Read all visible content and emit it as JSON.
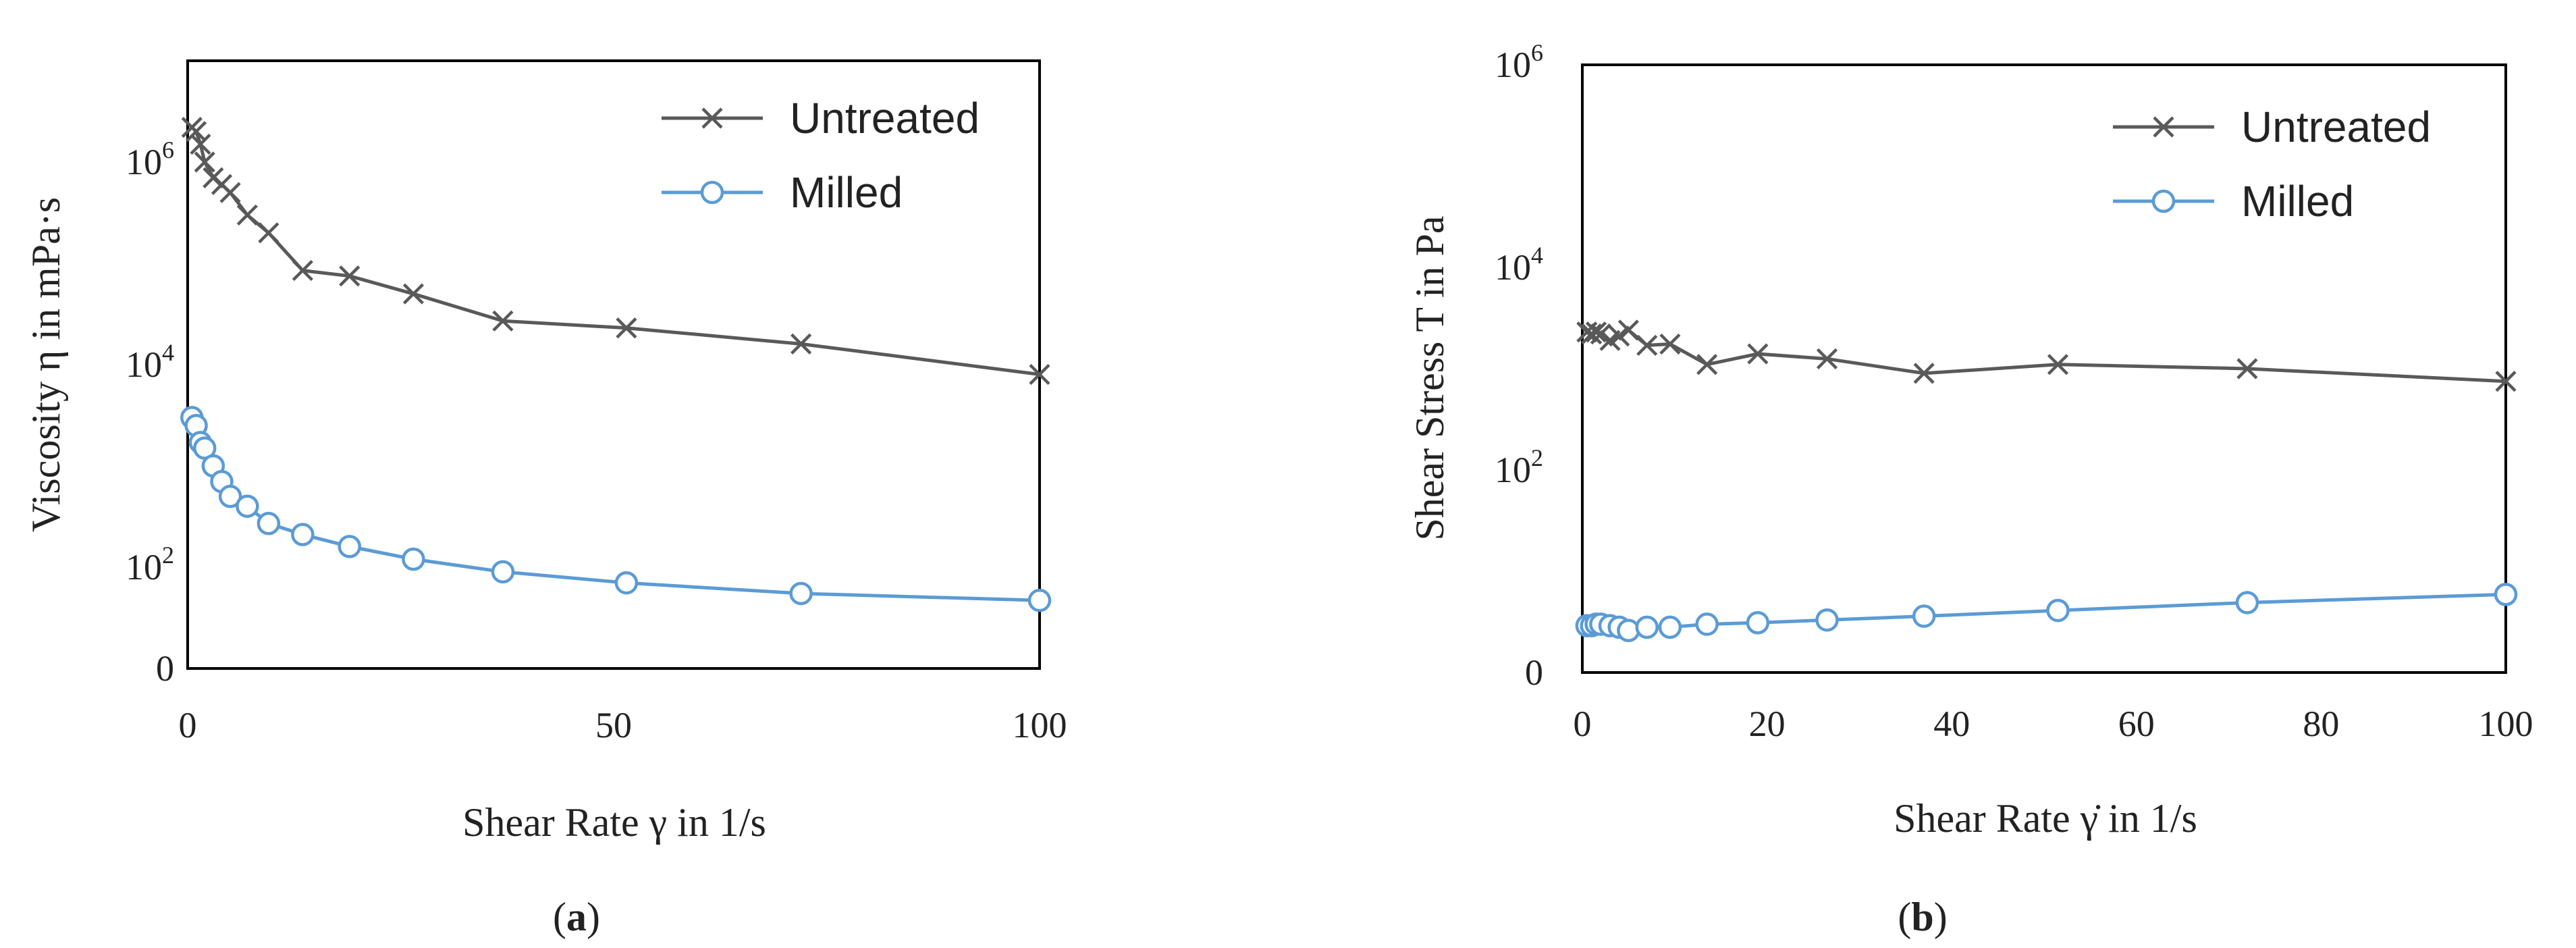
{
  "figure": {
    "panel_labels": [
      "(a)",
      "(b)"
    ],
    "label_letters": [
      "a",
      "b"
    ]
  },
  "chart_data": [
    {
      "type": "line",
      "panel": "a",
      "xlabel": "Shear Rate γ in 1/s",
      "ylabel": "Viscosity η in mPa·s",
      "y_scale": "log",
      "xlim": [
        0,
        100
      ],
      "ylim": [
        10,
        10000000
      ],
      "xticks": [
        0,
        50,
        100
      ],
      "xtick_labels": [
        "0",
        "50",
        "100"
      ],
      "yticks": [
        10,
        100,
        10000,
        1000000
      ],
      "ytick_labels": [
        {
          "base": "0",
          "exp": ""
        },
        {
          "base": "10",
          "exp": "2"
        },
        {
          "base": "10",
          "exp": "4"
        },
        {
          "base": "10",
          "exp": "6"
        }
      ],
      "grid": false,
      "legend": "top-right",
      "series": [
        {
          "name": "Untreated",
          "color": "#595959",
          "marker": "x",
          "x": [
            0.5,
            1,
            1.5,
            2,
            3,
            4,
            5,
            7,
            9.5,
            13.5,
            19,
            26.5,
            37,
            51.5,
            72,
            100
          ],
          "y": [
            2200000,
            2000000,
            1500000,
            1000000,
            700000,
            600000,
            500000,
            300000,
            200000,
            85000,
            75000,
            50000,
            27000,
            23000,
            16000,
            8000
          ]
        },
        {
          "name": "Milled",
          "color": "#5b9bd5",
          "marker": "o",
          "x": [
            0.5,
            1,
            1.5,
            2,
            3,
            4,
            5,
            7,
            9.5,
            13.5,
            19,
            26.5,
            37,
            51.5,
            72,
            100
          ],
          "y": [
            3000,
            2500,
            1700,
            1500,
            1000,
            700,
            500,
            400,
            270,
            210,
            160,
            120,
            90,
            70,
            55,
            47
          ]
        }
      ]
    },
    {
      "type": "line",
      "panel": "b",
      "xlabel": "Shear Rate γ̇ in 1/s",
      "ylabel": "Shear Stress T in Pa",
      "y_scale": "log",
      "xlim": [
        0,
        100
      ],
      "ylim": [
        1,
        1000000
      ],
      "xticks": [
        0,
        20,
        40,
        60,
        80,
        100
      ],
      "xtick_labels": [
        "0",
        "20",
        "40",
        "60",
        "80",
        "100"
      ],
      "yticks": [
        1,
        100,
        10000,
        1000000
      ],
      "ytick_labels": [
        {
          "base": "0",
          "exp": ""
        },
        {
          "base": "10",
          "exp": "2"
        },
        {
          "base": "10",
          "exp": "4"
        },
        {
          "base": "10",
          "exp": "6"
        }
      ],
      "grid": false,
      "legend": "top-right",
      "series": [
        {
          "name": "Untreated",
          "color": "#595959",
          "marker": "x",
          "x": [
            0.5,
            1,
            1.5,
            2,
            3,
            4,
            5,
            7,
            9.5,
            13.5,
            19,
            26.5,
            37,
            51.5,
            72,
            100
          ],
          "y": [
            2300,
            2200,
            2300,
            2200,
            1900,
            2100,
            2400,
            1700,
            1750,
            1100,
            1400,
            1250,
            900,
            1100,
            1000,
            750
          ]
        },
        {
          "name": "Milled",
          "color": "#5b9bd5",
          "marker": "o",
          "x": [
            0.5,
            1,
            1.5,
            2,
            3,
            4,
            5,
            7,
            9.5,
            13.5,
            19,
            26.5,
            37,
            51.5,
            72,
            100
          ],
          "y": [
            2.9,
            2.9,
            3.0,
            3.0,
            2.9,
            2.8,
            2.6,
            2.8,
            2.8,
            3.0,
            3.1,
            3.3,
            3.6,
            4.1,
            4.9,
            5.9
          ]
        }
      ]
    }
  ]
}
